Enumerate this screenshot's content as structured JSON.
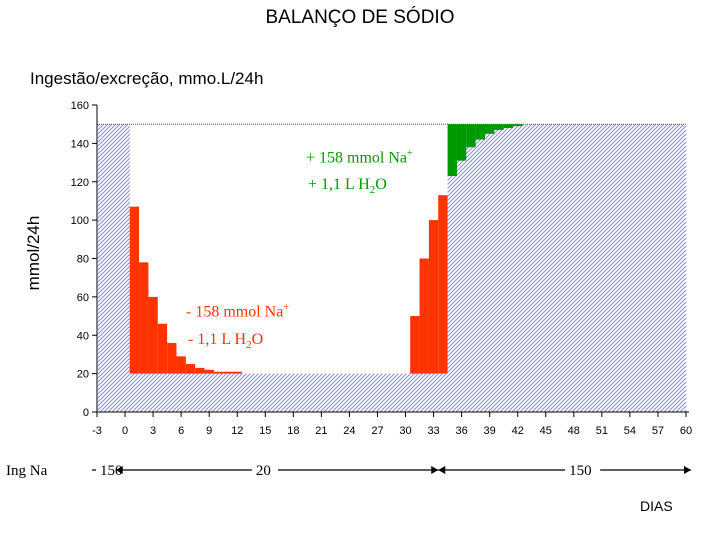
{
  "title": "BALANÇO DE SÓDIO",
  "subtitle": "Ingestão/excreção, mmo.L/24h",
  "ylabel": "mmol/24h",
  "xlabel": "DIAS",
  "intake_label": "Ing Na",
  "intake_values": [
    "150",
    "20",
    "150"
  ],
  "annotations": {
    "gain_na": "+ 158 mmol Na",
    "gain_na_sup": "+",
    "gain_water_prefix": "+ 1,1 L H",
    "gain_water_sub": "2",
    "gain_water_suffix": "O",
    "loss_na": "- 158 mmol Na",
    "loss_na_sup": "+",
    "loss_water_prefix": "- 1,1 L H",
    "loss_water_sub": "2",
    "loss_water_suffix": "O"
  },
  "colors": {
    "loss": "#ff3300",
    "gain": "#009900",
    "hatch": "#8a8fd0",
    "reference_line": "#555555"
  },
  "chart_data": {
    "type": "bar",
    "title": "BALANÇO DE SÓDIO",
    "ylabel": "mmol/24h",
    "xlabel": "DIAS",
    "ylim": [
      0,
      160
    ],
    "yticks": [
      0,
      20,
      40,
      60,
      80,
      100,
      120,
      140,
      160
    ],
    "xlim": [
      -3,
      60
    ],
    "xticks": [
      -3,
      0,
      3,
      6,
      9,
      12,
      15,
      18,
      21,
      24,
      27,
      30,
      33,
      36,
      39,
      42,
      45,
      48,
      51,
      54,
      57,
      60
    ],
    "grid": false,
    "intake_periods": [
      {
        "start": -3,
        "end": 0.5,
        "intake": 150
      },
      {
        "start": 0.5,
        "end": 34.5,
        "intake": 20
      },
      {
        "start": 34.5,
        "end": 60,
        "intake": 150
      }
    ],
    "reference_level": 150,
    "excretion_series": {
      "name": "excreção",
      "x": [
        -3,
        -2,
        -1,
        0,
        1,
        2,
        3,
        4,
        5,
        6,
        7,
        8,
        9,
        10,
        11,
        12,
        13,
        14,
        15,
        16,
        17,
        18,
        19,
        20,
        21,
        22,
        23,
        24,
        25,
        26,
        27,
        28,
        29,
        30,
        31,
        32,
        33,
        34,
        35,
        36,
        37,
        38,
        39,
        40,
        41,
        42,
        43,
        44,
        45,
        46,
        47,
        48,
        49,
        50,
        51,
        52,
        53,
        54,
        55,
        56,
        57,
        58,
        59,
        60
      ],
      "values": [
        150,
        150,
        150,
        150,
        107,
        78,
        60,
        46,
        36,
        29,
        25,
        23,
        22,
        21,
        21,
        21,
        20,
        20,
        20,
        20,
        20,
        20,
        20,
        20,
        20,
        20,
        20,
        20,
        20,
        20,
        20,
        20,
        20,
        20,
        50,
        80,
        100,
        113,
        123,
        131,
        138,
        142,
        145,
        147,
        148,
        149,
        150,
        150,
        150,
        150,
        150,
        150,
        150,
        150,
        150,
        150,
        150,
        150,
        150,
        150,
        150,
        150,
        150,
        150
      ]
    }
  }
}
